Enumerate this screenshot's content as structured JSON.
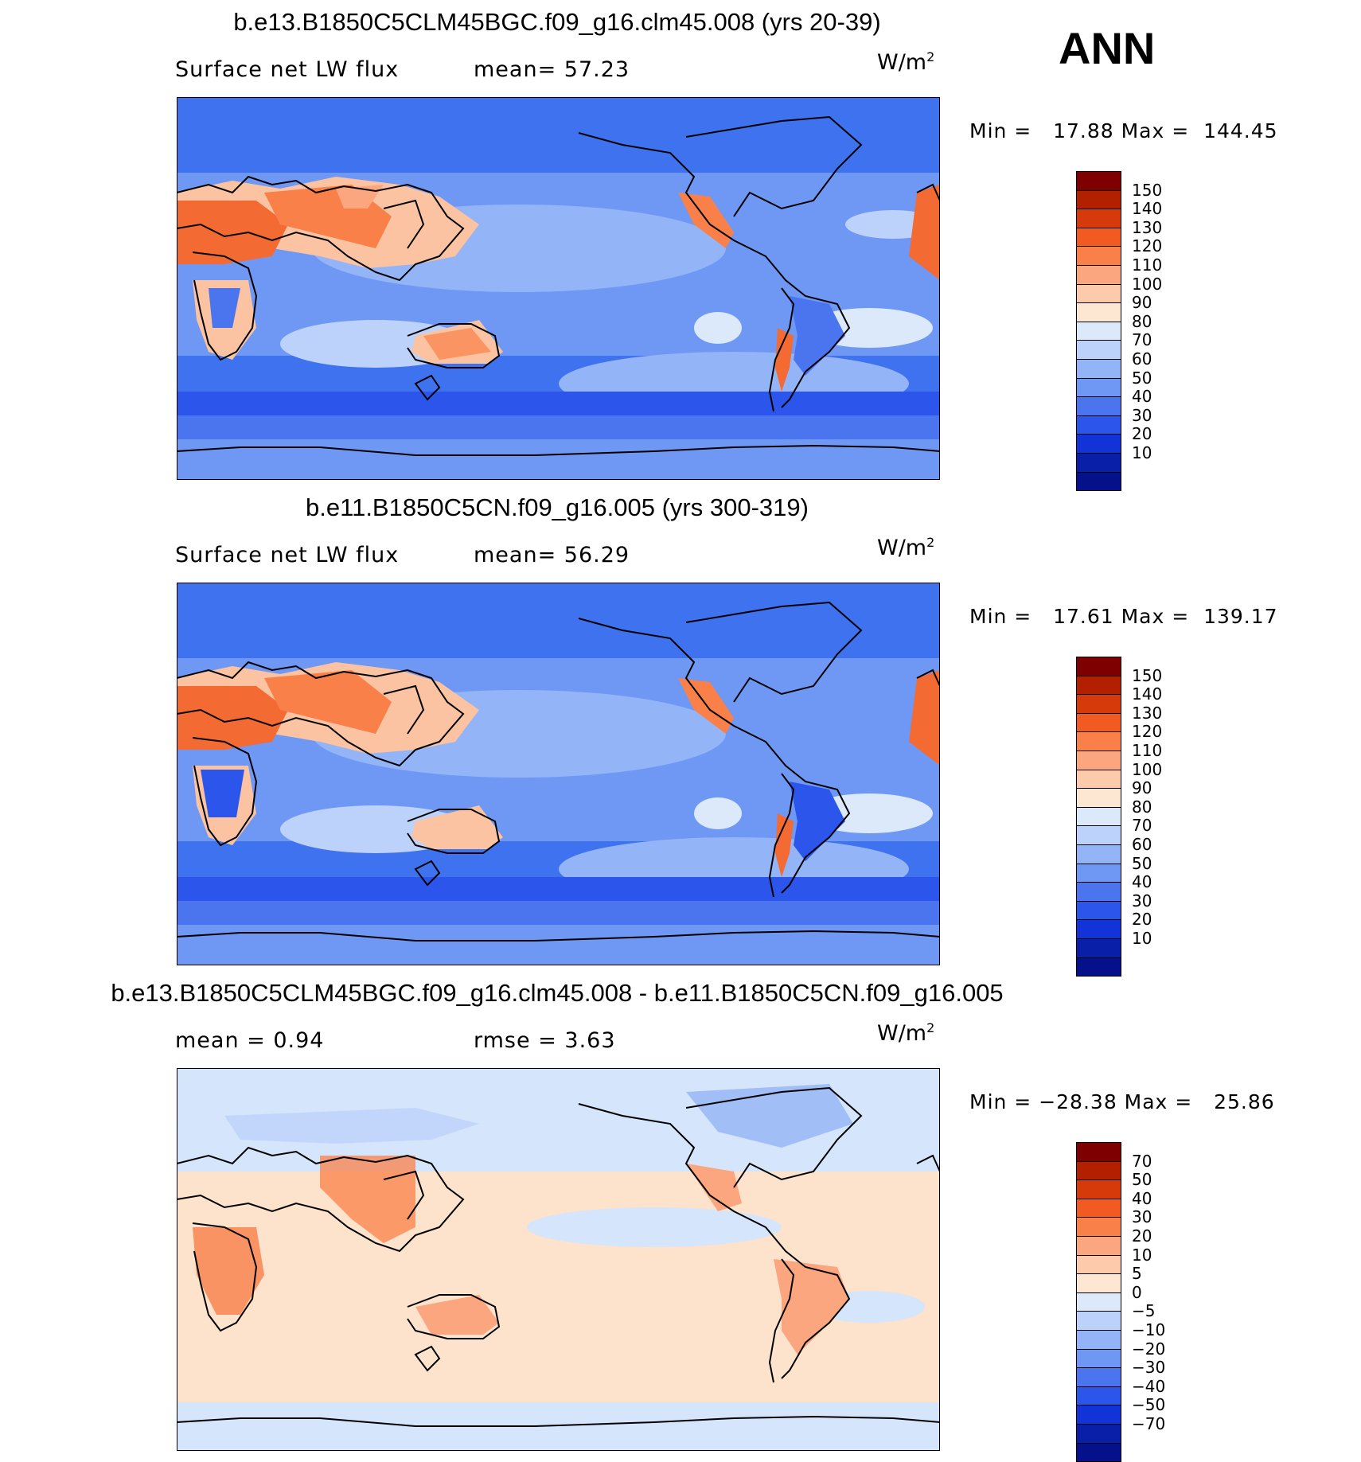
{
  "season": "ANN",
  "units_label": "W/m",
  "units_sup": "2",
  "panels": [
    {
      "title": "b.e13.B1850C5CLM45BGC.f09_g16.clm45.008 (yrs 20-39)",
      "subtitle_left": "Surface net LW flux",
      "subtitle_mid": "mean=  57.23",
      "minmax": "Min =   17.88 Max =  144.45",
      "colorbar": {
        "levels": [
          "150",
          "140",
          "130",
          "120",
          "110",
          "100",
          "90",
          "80",
          "70",
          "60",
          "50",
          "40",
          "30",
          "20",
          "10"
        ],
        "colors": [
          "#7f0000",
          "#b22000",
          "#d63a0b",
          "#f25a22",
          "#f98048",
          "#fca67f",
          "#fdcaab",
          "#fde6d2",
          "#dce9fb",
          "#bcd2fa",
          "#93b4f6",
          "#6f98f4",
          "#4a75ef",
          "#2b55eb",
          "#1233d8",
          "#0a1fa8",
          "#04118a"
        ]
      }
    },
    {
      "title": "b.e11.B1850C5CN.f09_g16.005 (yrs 300-319)",
      "subtitle_left": "Surface net LW flux",
      "subtitle_mid": "mean=  56.29",
      "minmax": "Min =   17.61 Max =  139.17",
      "colorbar": {
        "levels": [
          "150",
          "140",
          "130",
          "120",
          "110",
          "100",
          "90",
          "80",
          "70",
          "60",
          "50",
          "40",
          "30",
          "20",
          "10"
        ],
        "colors": [
          "#7f0000",
          "#b22000",
          "#d63a0b",
          "#f25a22",
          "#f98048",
          "#fca67f",
          "#fdcaab",
          "#fde6d2",
          "#dce9fb",
          "#bcd2fa",
          "#93b4f6",
          "#6f98f4",
          "#4a75ef",
          "#2b55eb",
          "#1233d8",
          "#0a1fa8",
          "#04118a"
        ]
      }
    },
    {
      "title": "b.e13.B1850C5CLM45BGC.f09_g16.clm45.008 - b.e11.B1850C5CN.f09_g16.005",
      "subtitle_left": "mean =   0.94",
      "subtitle_mid": "rmse =   3.63",
      "minmax": "Min = −28.38 Max =   25.86",
      "colorbar": {
        "levels": [
          "70",
          "50",
          "40",
          "30",
          "20",
          "10",
          "5",
          "0",
          "−5",
          "−10",
          "−20",
          "−30",
          "−40",
          "−50",
          "−70"
        ],
        "colors": [
          "#7f0000",
          "#b22000",
          "#d63a0b",
          "#f25a22",
          "#f98048",
          "#fca67f",
          "#fdcaab",
          "#fde6d2",
          "#dce9fb",
          "#bcd2fa",
          "#93b4f6",
          "#6f98f4",
          "#4a75ef",
          "#2b55eb",
          "#1233d8",
          "#0a1fa8",
          "#04118a"
        ]
      }
    }
  ],
  "colors": {
    "ocean_field": "#5f8ff2",
    "ocean_high": "#9bbcf8",
    "land_hot": "#f46a33",
    "land_warm": "#fbc3a1",
    "coast": "#000000",
    "diff_bg": "#d5e5fb",
    "diff_pos": "#fde2cc"
  }
}
